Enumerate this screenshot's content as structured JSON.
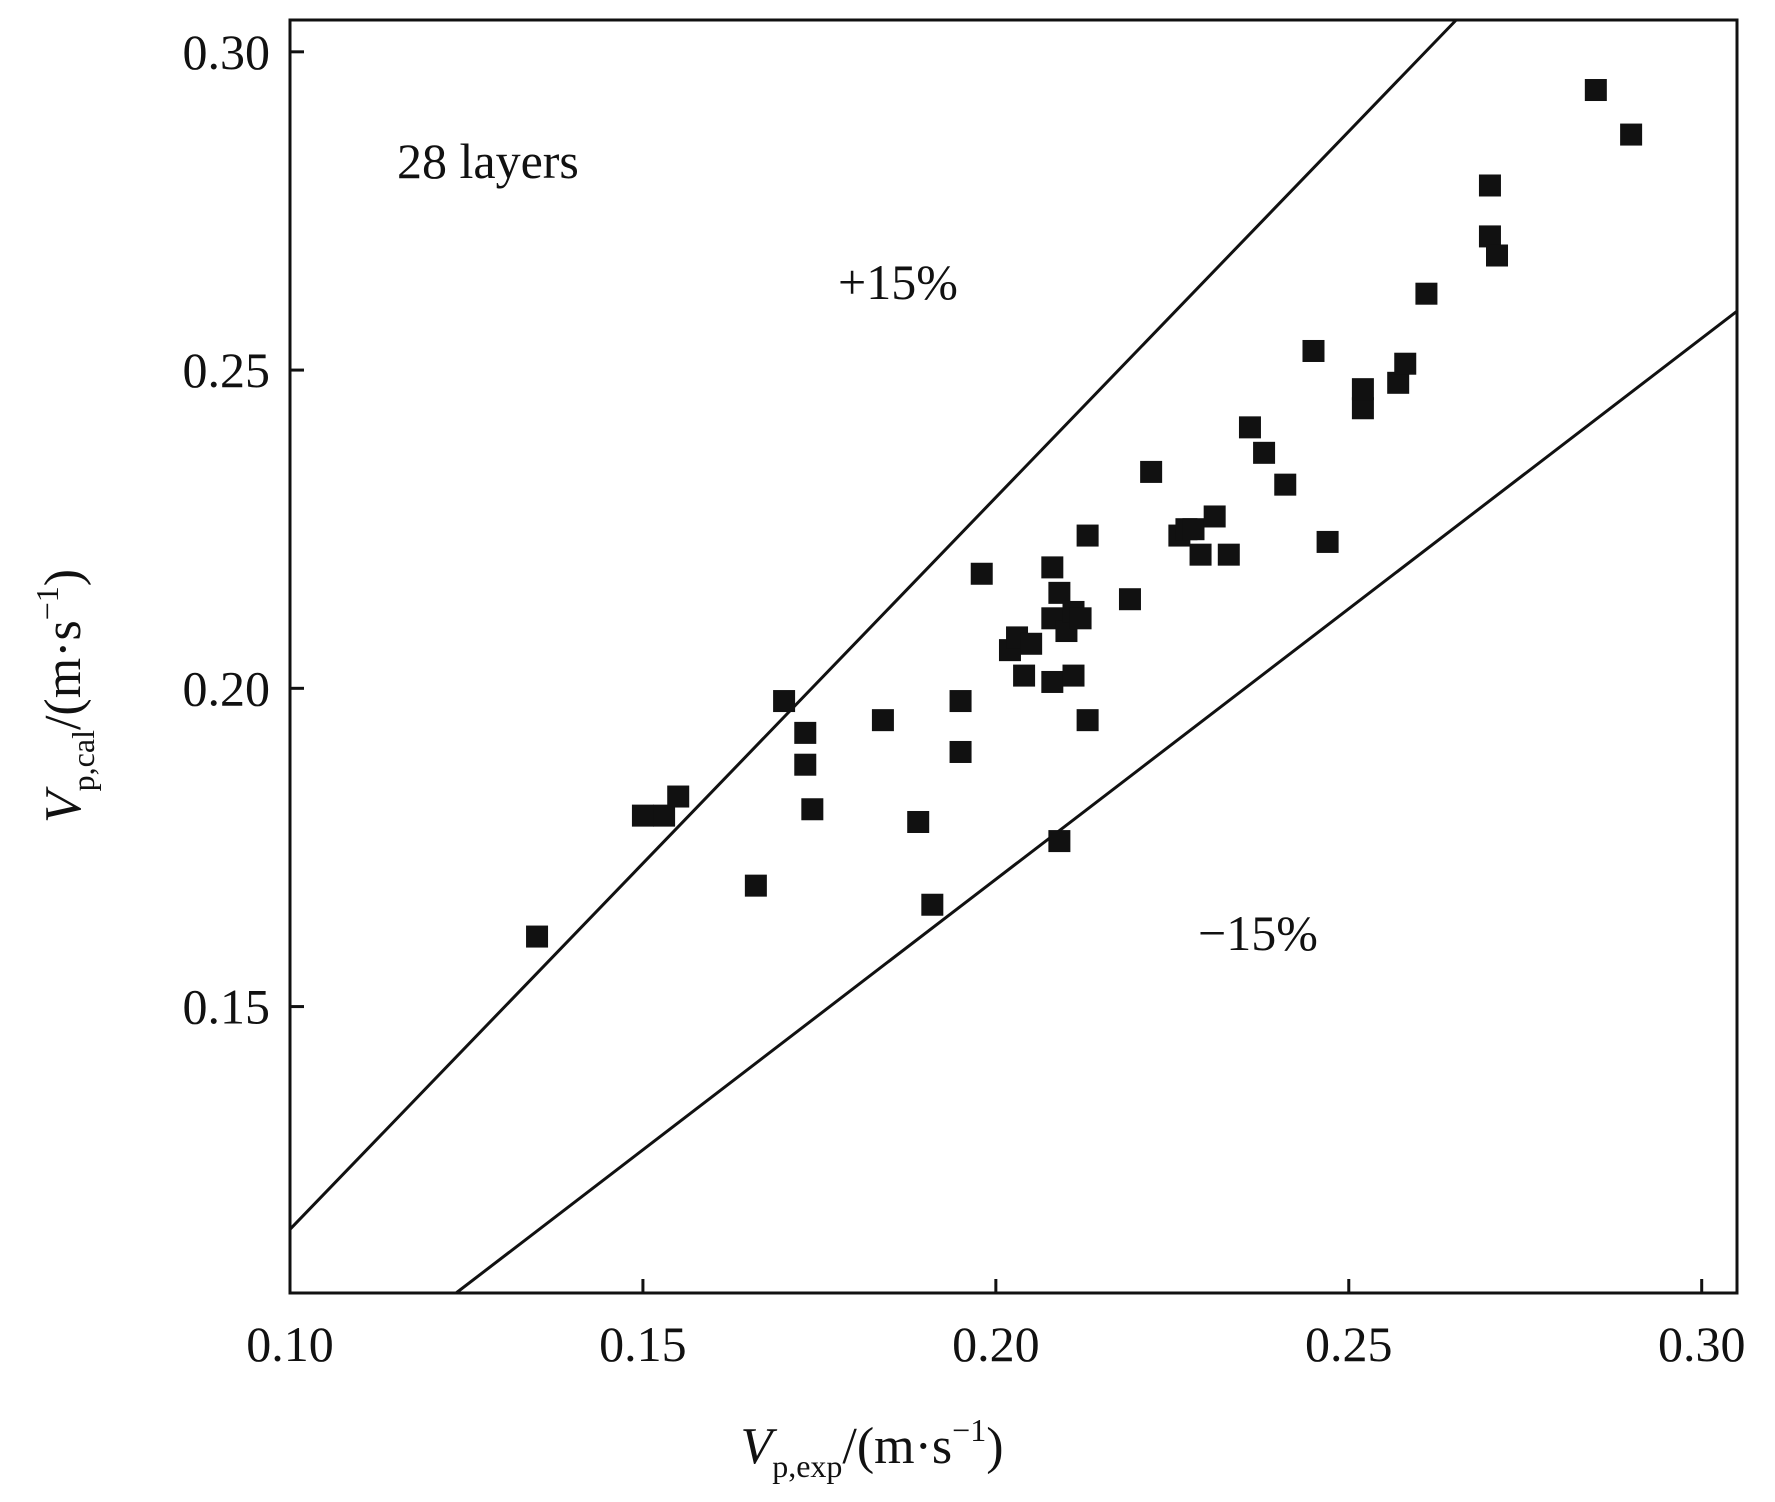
{
  "chart_data": {
    "type": "scatter",
    "title": "",
    "xlabel": {
      "var": "V",
      "sub": "p,exp",
      "unit": "/(m·s",
      "exp": "−1",
      "close": ")"
    },
    "ylabel": {
      "var": "V",
      "sub": "p,cal",
      "unit": "/(m·s",
      "exp": "−1",
      "close": ")"
    },
    "xlim": [
      0.1,
      0.305
    ],
    "ylim": [
      0.105,
      0.305
    ],
    "xticks": [
      0.1,
      0.15,
      0.2,
      0.25,
      0.3
    ],
    "yticks": [
      0.15,
      0.2,
      0.25,
      0.3
    ],
    "xtick_labels": [
      "0.10",
      "0.15",
      "0.20",
      "0.25",
      "0.30"
    ],
    "ytick_labels": [
      "0.15",
      "0.20",
      "0.25",
      "0.30"
    ],
    "grid": false,
    "annotations": {
      "layers": "28 layers",
      "upper": "+15%",
      "lower": "−15%"
    },
    "reference_lines": [
      {
        "name": "+15%",
        "slope": 1.15
      },
      {
        "name": "−15%",
        "slope": 0.85
      }
    ],
    "series": [
      {
        "marker": "square",
        "color": "#111111",
        "points": [
          [
            0.135,
            0.161
          ],
          [
            0.15,
            0.18
          ],
          [
            0.153,
            0.18
          ],
          [
            0.155,
            0.183
          ],
          [
            0.166,
            0.169
          ],
          [
            0.17,
            0.198
          ],
          [
            0.173,
            0.193
          ],
          [
            0.173,
            0.188
          ],
          [
            0.174,
            0.181
          ],
          [
            0.184,
            0.195
          ],
          [
            0.189,
            0.179
          ],
          [
            0.191,
            0.166
          ],
          [
            0.195,
            0.198
          ],
          [
            0.195,
            0.19
          ],
          [
            0.198,
            0.218
          ],
          [
            0.202,
            0.206
          ],
          [
            0.203,
            0.208
          ],
          [
            0.204,
            0.202
          ],
          [
            0.205,
            0.207
          ],
          [
            0.208,
            0.219
          ],
          [
            0.208,
            0.201
          ],
          [
            0.208,
            0.211
          ],
          [
            0.209,
            0.215
          ],
          [
            0.209,
            0.176
          ],
          [
            0.21,
            0.209
          ],
          [
            0.211,
            0.212
          ],
          [
            0.211,
            0.202
          ],
          [
            0.212,
            0.211
          ],
          [
            0.213,
            0.224
          ],
          [
            0.213,
            0.195
          ],
          [
            0.219,
            0.214
          ],
          [
            0.222,
            0.234
          ],
          [
            0.226,
            0.224
          ],
          [
            0.227,
            0.225
          ],
          [
            0.228,
            0.225
          ],
          [
            0.229,
            0.221
          ],
          [
            0.231,
            0.227
          ],
          [
            0.233,
            0.221
          ],
          [
            0.236,
            0.241
          ],
          [
            0.238,
            0.237
          ],
          [
            0.241,
            0.232
          ],
          [
            0.245,
            0.253
          ],
          [
            0.247,
            0.223
          ],
          [
            0.252,
            0.244
          ],
          [
            0.252,
            0.247
          ],
          [
            0.257,
            0.248
          ],
          [
            0.258,
            0.251
          ],
          [
            0.261,
            0.262
          ],
          [
            0.27,
            0.279
          ],
          [
            0.27,
            0.271
          ],
          [
            0.271,
            0.268
          ],
          [
            0.285,
            0.294
          ],
          [
            0.29,
            0.287
          ]
        ]
      }
    ]
  }
}
